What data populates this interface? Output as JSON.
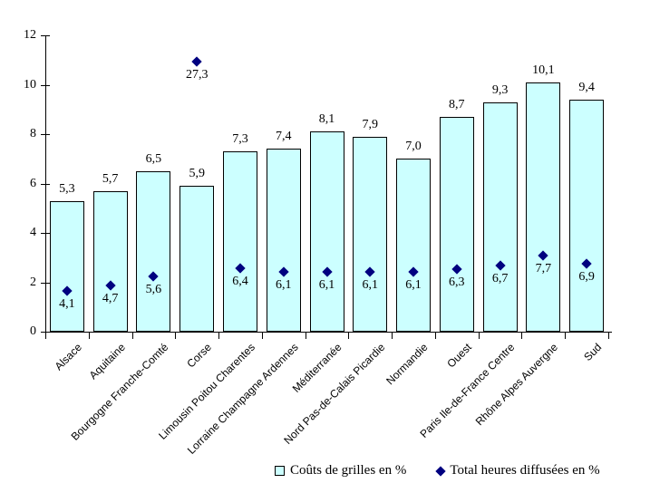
{
  "chart_data": {
    "type": "bar",
    "subtype": "bar-with-scatter-diamond-overlay",
    "title": "",
    "xlabel": "",
    "ylabel": "",
    "grid": false,
    "legend_position": "bottom",
    "categories": [
      "Alsace",
      "Aquitaine",
      "Bourgogne Franche-Comté",
      "Corse",
      "Limousin Poitou Charentes",
      "Lorraine Champagne Ardennes",
      "Méditerranée",
      "Nord Pas-de-Calais Picardie",
      "Normandie",
      "Ouest",
      "Paris Ile-de-France Centre",
      "Rhône Alpes Auvergne",
      "Sud"
    ],
    "series": [
      {
        "name": "Coûts de grilles en %",
        "type": "bar",
        "axis": "left",
        "fill_color": "#ccffff",
        "border_color": "#000000",
        "values": [
          5.3,
          5.7,
          6.5,
          5.9,
          7.3,
          7.4,
          8.1,
          7.9,
          7.0,
          8.7,
          9.3,
          10.1,
          9.4
        ],
        "labels": [
          "5,3",
          "5,7",
          "6,5",
          "5,9",
          "7,3",
          "7,4",
          "8,1",
          "7,9",
          "7,0",
          "8,7",
          "9,3",
          "10,1",
          "9,4"
        ]
      },
      {
        "name": "Total heures diffusées en %",
        "type": "scatter",
        "marker": "diamond",
        "axis": "right-hidden",
        "color": "#000080",
        "values": [
          4.1,
          4.7,
          5.6,
          27.3,
          6.4,
          6.1,
          6.1,
          6.1,
          6.1,
          6.3,
          6.7,
          7.7,
          6.9
        ],
        "labels": [
          "4,1",
          "4,7",
          "5,6",
          "27,3",
          "6,4",
          "6,1",
          "6,1",
          "6,1",
          "6,1",
          "6,3",
          "6,7",
          "7,7",
          "6,9"
        ]
      }
    ],
    "left_axis": {
      "min": 0,
      "max": 12,
      "step": 2,
      "tick_labels": [
        "0",
        "2",
        "4",
        "6",
        "8",
        "10",
        "12"
      ]
    },
    "hidden_right_axis": {
      "min": 0,
      "max": 30
    }
  },
  "colors": {
    "bar_fill": "#ccffff",
    "bar_border": "#000000",
    "diamond": "#000080",
    "axis": "#000000",
    "text": "#000000",
    "background": "#ffffff"
  }
}
